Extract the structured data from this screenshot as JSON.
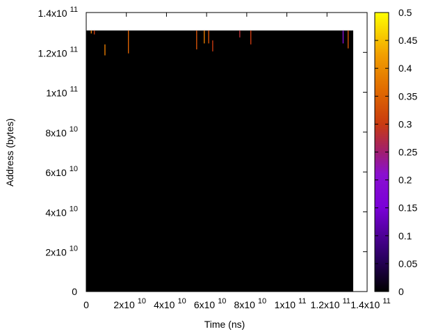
{
  "chart_data": {
    "type": "heatmap",
    "title": "",
    "xlabel": "Time (ns)",
    "ylabel": "Address (bytes)",
    "xlim": [
      0,
      140000000000
    ],
    "ylim": [
      0,
      140000000000
    ],
    "x_ticks": [
      {
        "value": 0,
        "base": "0",
        "exp": ""
      },
      {
        "value": 20000000000,
        "base": "2x10",
        "exp": "10"
      },
      {
        "value": 40000000000,
        "base": "4x10",
        "exp": "10"
      },
      {
        "value": 60000000000,
        "base": "6x10",
        "exp": "10"
      },
      {
        "value": 80000000000,
        "base": "8x10",
        "exp": "10"
      },
      {
        "value": 100000000000,
        "base": "1x10",
        "exp": "11"
      },
      {
        "value": 120000000000,
        "base": "1.2x10",
        "exp": "11"
      },
      {
        "value": 140000000000,
        "base": "1.4x10",
        "exp": "11"
      }
    ],
    "y_ticks": [
      {
        "value": 0,
        "base": "0",
        "exp": ""
      },
      {
        "value": 20000000000,
        "base": "2x10",
        "exp": "10"
      },
      {
        "value": 40000000000,
        "base": "4x10",
        "exp": "10"
      },
      {
        "value": 60000000000,
        "base": "6x10",
        "exp": "10"
      },
      {
        "value": 80000000000,
        "base": "8x10",
        "exp": "10"
      },
      {
        "value": 100000000000,
        "base": "1x10",
        "exp": "11"
      },
      {
        "value": 120000000000,
        "base": "1.2x10",
        "exp": "11"
      },
      {
        "value": 140000000000,
        "base": "1.4x10",
        "exp": "11"
      }
    ],
    "heatmap_extent": {
      "x": [
        0,
        140000000000
      ],
      "y": [
        0,
        131000000000
      ]
    },
    "background_value": 0,
    "colorbar": {
      "range": [
        0,
        0.5
      ],
      "ticks": [
        "0",
        "0.05",
        "0.1",
        "0.15",
        "0.2",
        "0.25",
        "0.3",
        "0.35",
        "0.4",
        "0.45",
        "0.5"
      ],
      "palette": "black-blue-red-yellow"
    },
    "hot_spots": [
      {
        "x": 2500000000,
        "y_top": 131000000000,
        "y_bottom": 129500000000,
        "value": 0.38
      },
      {
        "x": 4000000000,
        "y_top": 131000000000,
        "y_bottom": 129000000000,
        "value": 0.3
      },
      {
        "x": 9300000000,
        "y_top": 124000000000,
        "y_bottom": 118500000000,
        "value": 0.38
      },
      {
        "x": 21000000000,
        "y_top": 131000000000,
        "y_bottom": 119500000000,
        "value": 0.35
      },
      {
        "x": 55000000000,
        "y_top": 131000000000,
        "y_bottom": 121500000000,
        "value": 0.33
      },
      {
        "x": 58800000000,
        "y_top": 131000000000,
        "y_bottom": 124500000000,
        "value": 0.38
      },
      {
        "x": 61000000000,
        "y_top": 131000000000,
        "y_bottom": 124500000000,
        "value": 0.33
      },
      {
        "x": 63000000000,
        "y_top": 126000000000,
        "y_bottom": 120500000000,
        "value": 0.3
      },
      {
        "x": 76500000000,
        "y_top": 131000000000,
        "y_bottom": 127500000000,
        "value": 0.28
      },
      {
        "x": 82000000000,
        "y_top": 131000000000,
        "y_bottom": 124000000000,
        "value": 0.3
      },
      {
        "x": 128000000000,
        "y_top": 131000000000,
        "y_bottom": 124500000000,
        "value": 0.2
      },
      {
        "x": 130500000000,
        "y_top": 131000000000,
        "y_bottom": 122000000000,
        "value": 0.33
      }
    ]
  }
}
